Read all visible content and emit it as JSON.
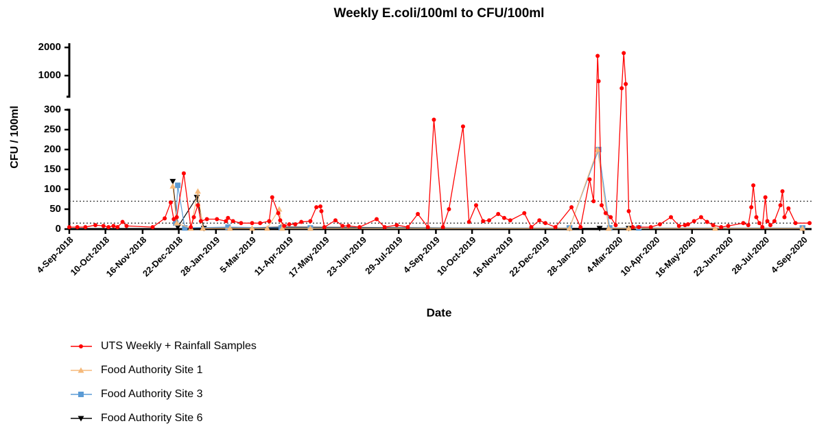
{
  "chart_data": {
    "type": "line",
    "title": "Weekly E.coli/100ml to CFU/100ml",
    "x_label": "Date",
    "y_label": "CFU / 100ml",
    "xlim": [
      "2018-09-04",
      "2020-09-12"
    ],
    "xticks": [
      {
        "value": "2018-09-04",
        "label": "4-Sep-2018"
      },
      {
        "value": "2018-10-10",
        "label": "10-Oct-2018"
      },
      {
        "value": "2018-11-16",
        "label": "16-Nov-2018"
      },
      {
        "value": "2018-12-22",
        "label": "22-Dec-2018"
      },
      {
        "value": "2019-01-28",
        "label": "28-Jan-2019"
      },
      {
        "value": "2019-03-05",
        "label": "5-Mar-2019"
      },
      {
        "value": "2019-04-11",
        "label": "11-Apr-2019"
      },
      {
        "value": "2019-05-17",
        "label": "17-May-2019"
      },
      {
        "value": "2019-06-23",
        "label": "23-Jun-2019"
      },
      {
        "value": "2019-07-29",
        "label": "29-Jul-2019"
      },
      {
        "value": "2019-09-04",
        "label": "4-Sep-2019"
      },
      {
        "value": "2019-10-10",
        "label": "10-Oct-2019"
      },
      {
        "value": "2019-11-16",
        "label": "16-Nov-2019"
      },
      {
        "value": "2019-12-22",
        "label": "22-Dec-2019"
      },
      {
        "value": "2020-01-28",
        "label": "28-Jan-2020"
      },
      {
        "value": "2020-03-04",
        "label": "4-Mar-2020"
      },
      {
        "value": "2020-04-10",
        "label": "10-Apr-2020"
      },
      {
        "value": "2020-05-16",
        "label": "16-May-2020"
      },
      {
        "value": "2020-06-22",
        "label": "22-Jun-2020"
      },
      {
        "value": "2020-07-28",
        "label": "28-Jul-2020"
      },
      {
        "value": "2020-09-04",
        "label": "4-Sep-2020"
      }
    ],
    "y_segments": [
      {
        "ylim": [
          0,
          300
        ],
        "yticks": [
          0,
          50,
          100,
          150,
          200,
          250,
          300
        ]
      },
      {
        "ylim": [
          250,
          2150
        ],
        "yticks": [
          1000,
          2000
        ]
      }
    ],
    "reference_lines": [
      70,
      15
    ],
    "series": [
      {
        "name": "UTS Weekly + Rainfall Samples",
        "color": "#ff0000",
        "marker": "circle",
        "x": [
          "2018-09-04",
          "2018-09-12",
          "2018-09-20",
          "2018-09-30",
          "2018-10-08",
          "2018-10-13",
          "2018-10-18",
          "2018-10-22",
          "2018-10-27",
          "2018-10-31",
          "2018-11-26",
          "2018-12-08",
          "2018-12-14",
          "2018-12-17",
          "2018-12-20",
          "2018-12-27",
          "2019-01-03",
          "2019-01-06",
          "2019-01-10",
          "2019-01-13",
          "2019-01-19",
          "2019-01-29",
          "2019-02-07",
          "2019-02-09",
          "2019-02-14",
          "2019-02-22",
          "2019-03-05",
          "2019-03-13",
          "2019-03-22",
          "2019-03-25",
          "2019-03-31",
          "2019-04-02",
          "2019-04-06",
          "2019-04-11",
          "2019-04-17",
          "2019-04-23",
          "2019-05-02",
          "2019-05-08",
          "2019-05-12",
          "2019-05-13",
          "2019-05-16",
          "2019-05-27",
          "2019-06-03",
          "2019-06-09",
          "2019-06-20",
          "2019-07-07",
          "2019-07-15",
          "2019-07-27",
          "2019-08-07",
          "2019-08-17",
          "2019-08-27",
          "2019-09-02",
          "2019-09-11",
          "2019-09-17",
          "2019-10-01",
          "2019-10-07",
          "2019-10-14",
          "2019-10-21",
          "2019-10-27",
          "2019-11-05",
          "2019-11-11",
          "2019-11-17",
          "2019-12-01",
          "2019-12-08",
          "2019-12-16",
          "2019-12-22",
          "2020-01-01",
          "2020-01-17",
          "2020-01-26",
          "2020-02-04",
          "2020-02-08",
          "2020-02-12",
          "2020-02-13",
          "2020-02-16",
          "2020-02-20",
          "2020-02-25",
          "2020-03-01",
          "2020-03-07",
          "2020-03-09",
          "2020-03-11",
          "2020-03-14",
          "2020-03-18",
          "2020-03-24",
          "2020-04-05",
          "2020-04-14",
          "2020-04-25",
          "2020-05-03",
          "2020-05-09",
          "2020-05-12",
          "2020-05-18",
          "2020-05-25",
          "2020-05-31",
          "2020-06-06",
          "2020-06-14",
          "2020-06-21",
          "2020-07-06",
          "2020-07-11",
          "2020-07-14",
          "2020-07-16",
          "2020-07-19",
          "2020-07-22",
          "2020-07-25",
          "2020-07-28",
          "2020-07-30",
          "2020-08-02",
          "2020-08-06",
          "2020-08-12",
          "2020-08-14",
          "2020-08-16",
          "2020-08-20",
          "2020-08-27",
          "2020-09-10"
        ],
        "values": [
          5,
          5,
          5,
          10,
          8,
          5,
          8,
          5,
          18,
          8,
          5,
          27,
          67,
          25,
          30,
          140,
          5,
          30,
          60,
          20,
          25,
          25,
          20,
          28,
          20,
          15,
          15,
          15,
          20,
          80,
          40,
          22,
          8,
          12,
          12,
          18,
          20,
          55,
          57,
          45,
          5,
          22,
          8,
          8,
          5,
          25,
          5,
          10,
          5,
          38,
          5,
          275,
          5,
          50,
          258,
          18,
          60,
          20,
          22,
          38,
          28,
          22,
          40,
          5,
          22,
          15,
          5,
          55,
          5,
          125,
          70,
          1700,
          800,
          60,
          40,
          30,
          10,
          550,
          1800,
          700,
          45,
          5,
          5,
          5,
          12,
          30,
          8,
          10,
          12,
          20,
          30,
          18,
          10,
          5,
          8,
          15,
          10,
          55,
          110,
          30,
          15,
          5,
          80,
          20,
          10,
          20,
          60,
          95,
          30,
          52,
          15,
          15
        ]
      },
      {
        "name": "Food Authority Site 1",
        "color": "#f5b97a",
        "marker": "triangle-up",
        "x": [
          "2018-12-16",
          "2018-12-20",
          "2019-01-03",
          "2019-01-10",
          "2019-01-15",
          "2019-02-11",
          "2019-03-05",
          "2019-03-20",
          "2019-04-01",
          "2019-04-04",
          "2019-05-02",
          "2020-01-15",
          "2020-02-12",
          "2020-02-23",
          "2020-03-14",
          "2020-06-08",
          "2020-09-03"
        ],
        "values": [
          108,
          15,
          2,
          95,
          2,
          2,
          2,
          2,
          50,
          2,
          2,
          2,
          200,
          2,
          2,
          2,
          2
        ]
      },
      {
        "name": "Food Authority Site 3",
        "color": "#5b9bd5",
        "marker": "square",
        "x": [
          "2018-12-19",
          "2018-12-21",
          "2018-12-28",
          "2019-02-09",
          "2019-04-03",
          "2019-05-02",
          "2020-01-15",
          "2020-02-13",
          "2020-02-24",
          "2020-03-24",
          "2020-09-03"
        ],
        "values": [
          15,
          110,
          3,
          5,
          3,
          3,
          3,
          200,
          3,
          3,
          3
        ]
      },
      {
        "name": "Food Authority Site 6",
        "color": "#000000",
        "marker": "triangle-down",
        "x": [
          "2018-12-16",
          "2018-12-21",
          "2019-01-09",
          "2019-01-16",
          "2019-04-05",
          "2020-01-15",
          "2020-02-14",
          "2020-03-14",
          "2020-09-03"
        ],
        "values": [
          120,
          5,
          80,
          2,
          5,
          2,
          2,
          2,
          2
        ]
      }
    ]
  }
}
